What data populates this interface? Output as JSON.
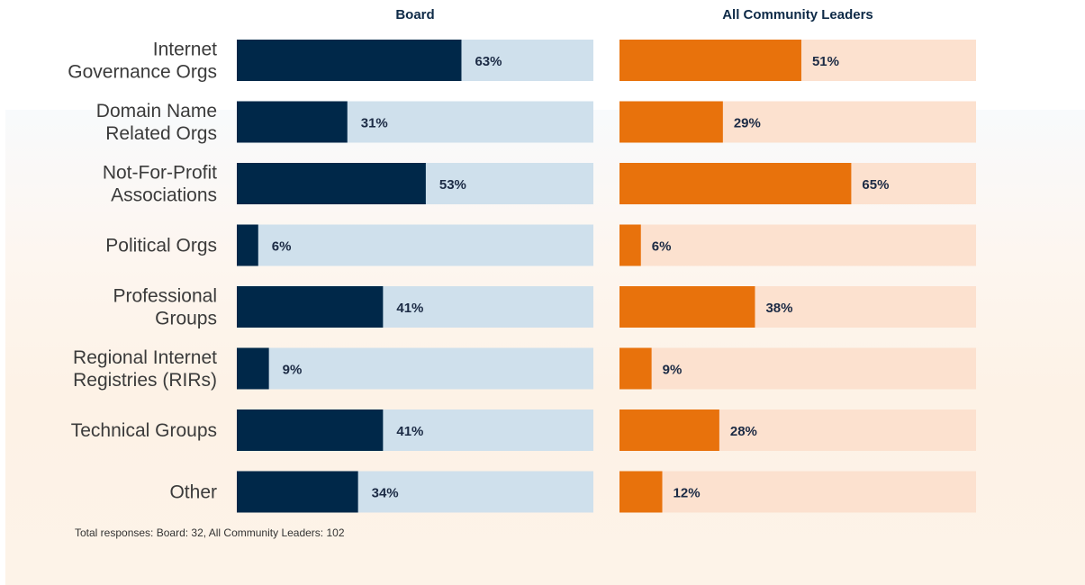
{
  "chart_data": {
    "type": "bar",
    "orientation": "horizontal",
    "categories": [
      [
        "Internet",
        "Governance Orgs"
      ],
      [
        "Domain Name",
        "Related Orgs"
      ],
      [
        "Not-For-Profit",
        "Associations"
      ],
      [
        "Political Orgs"
      ],
      [
        "Professional",
        "Groups"
      ],
      [
        "Regional Internet",
        "Registries (RIRs)"
      ],
      [
        "Technical Groups"
      ],
      [
        "Other"
      ]
    ],
    "series": [
      {
        "name": "Board",
        "values": [
          63,
          31,
          53,
          6,
          41,
          9,
          41,
          34
        ],
        "labels": [
          "63%",
          "31%",
          "53%",
          "6%",
          "41%",
          "9%",
          "41%",
          "34%"
        ],
        "color": "#002849",
        "track_color": "#cfe0ec"
      },
      {
        "name": "All Community Leaders",
        "values": [
          51,
          29,
          65,
          6,
          38,
          9,
          28,
          12
        ],
        "labels": [
          "51%",
          "29%",
          "65%",
          "6%",
          "38%",
          "9%",
          "28%",
          "12%"
        ],
        "color": "#e8720c",
        "track_color": "#fce1cf"
      }
    ],
    "xlim": [
      0,
      100
    ],
    "grid": false,
    "legend": "panel titles"
  },
  "footnote": "Total responses: Board: 32, All Community Leaders: 102"
}
